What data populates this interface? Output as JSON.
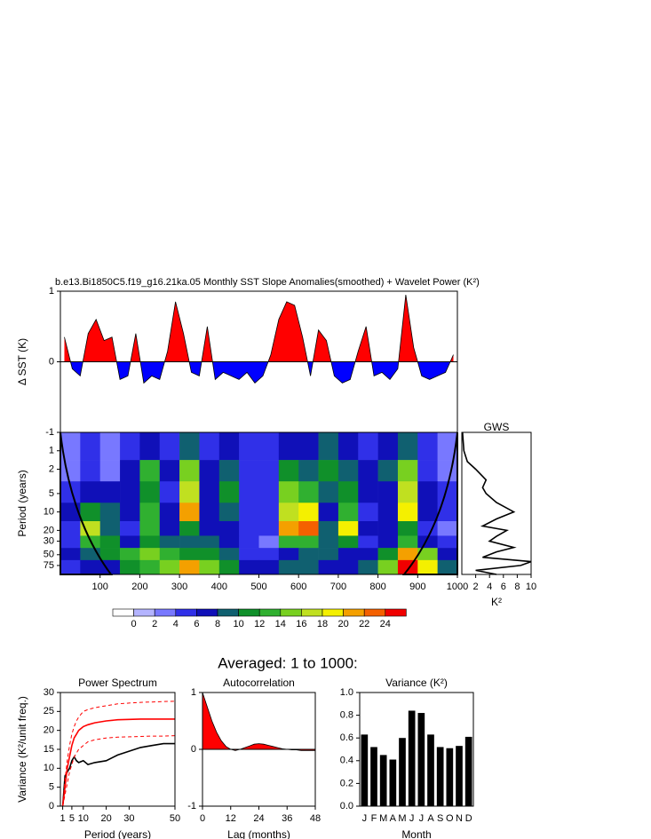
{
  "heading": "Averaged: 1 to 1000:",
  "chart_data": [
    {
      "type": "area",
      "title": "b.e13.Bi1850C5.f19_g16.21ka.05 Monthly SST Slope Anomalies(smoothed) + Wavelet Power (K²)",
      "ylabel": "Δ SST (K)",
      "xlim": [
        0,
        1000
      ],
      "ylim": [
        -1,
        1
      ],
      "yticks": [
        -1,
        0,
        1
      ],
      "color_positive": "#ff0000",
      "color_negative": "#0000ff",
      "x": [
        10,
        30,
        50,
        70,
        90,
        110,
        130,
        150,
        170,
        190,
        210,
        230,
        250,
        270,
        290,
        310,
        330,
        350,
        370,
        390,
        410,
        430,
        450,
        470,
        490,
        510,
        530,
        550,
        570,
        590,
        610,
        630,
        650,
        670,
        690,
        710,
        730,
        750,
        770,
        790,
        810,
        830,
        850,
        870,
        890,
        910,
        930,
        950,
        970,
        990
      ],
      "values": [
        0.35,
        -0.1,
        -0.2,
        0.4,
        0.6,
        0.3,
        0.35,
        -0.25,
        -0.2,
        0.4,
        -0.3,
        -0.2,
        -0.25,
        0.15,
        0.85,
        0.4,
        -0.15,
        -0.2,
        0.5,
        -0.25,
        -0.15,
        -0.2,
        -0.25,
        -0.15,
        -0.3,
        -0.2,
        0.1,
        0.6,
        0.85,
        0.8,
        0.35,
        -0.2,
        0.45,
        0.3,
        -0.2,
        -0.3,
        -0.25,
        0.15,
        0.5,
        -0.2,
        -0.15,
        -0.25,
        -0.1,
        0.95,
        0.2,
        -0.2,
        -0.25,
        -0.2,
        -0.15,
        0.1
      ]
    },
    {
      "type": "heatmap",
      "ylabel": "Period (years)",
      "xlim": [
        0,
        1000
      ],
      "ylim": [
        0.5,
        105
      ],
      "ylog": true,
      "y_reversed": true,
      "xticks": [
        100,
        200,
        300,
        400,
        500,
        600,
        700,
        800,
        900,
        1000
      ],
      "yticks": [
        1,
        2,
        5,
        10,
        20,
        30,
        50,
        75
      ],
      "x": [
        25,
        75,
        125,
        175,
        225,
        275,
        325,
        375,
        425,
        475,
        525,
        575,
        625,
        675,
        725,
        775,
        825,
        875,
        925,
        975
      ],
      "periods": [
        1,
        2,
        5,
        10,
        20,
        30,
        50,
        75
      ],
      "values": [
        [
          2,
          4,
          2,
          4,
          6,
          4,
          8,
          4,
          6,
          4,
          4,
          6,
          6,
          8,
          6,
          4,
          6,
          8,
          4,
          2
        ],
        [
          2,
          4,
          3,
          6,
          12,
          6,
          14,
          6,
          8,
          4,
          4,
          10,
          8,
          10,
          8,
          6,
          8,
          14,
          4,
          2
        ],
        [
          4,
          6,
          6,
          6,
          10,
          4,
          16,
          6,
          10,
          4,
          4,
          14,
          12,
          8,
          10,
          6,
          6,
          16,
          6,
          4
        ],
        [
          6,
          10,
          8,
          6,
          12,
          6,
          20,
          6,
          8,
          4,
          4,
          16,
          18,
          6,
          12,
          4,
          6,
          18,
          6,
          4
        ],
        [
          4,
          16,
          8,
          4,
          12,
          6,
          10,
          6,
          6,
          4,
          4,
          20,
          22,
          8,
          18,
          6,
          6,
          10,
          4,
          2
        ],
        [
          4,
          12,
          10,
          6,
          10,
          8,
          8,
          8,
          6,
          4,
          2,
          12,
          12,
          8,
          10,
          4,
          6,
          12,
          6,
          4
        ],
        [
          6,
          8,
          10,
          12,
          14,
          12,
          10,
          10,
          8,
          4,
          4,
          6,
          8,
          8,
          6,
          6,
          10,
          20,
          14,
          6
        ],
        [
          4,
          6,
          6,
          10,
          12,
          14,
          20,
          14,
          10,
          6,
          6,
          8,
          8,
          6,
          6,
          8,
          14,
          24,
          18,
          8
        ]
      ],
      "levels": [
        0,
        2,
        4,
        6,
        8,
        10,
        12,
        14,
        16,
        18,
        20,
        22,
        24
      ],
      "colors": [
        "#ffffff",
        "#b4b4ff",
        "#7878ff",
        "#3030e8",
        "#1010b8",
        "#106070",
        "#10902a",
        "#30b030",
        "#78d020",
        "#c0e020",
        "#f4f000",
        "#f4a000",
        "#f46000",
        "#f00000"
      ]
    },
    {
      "type": "line",
      "title": "GWS",
      "xlabel": "K²",
      "orientation": "horizontal",
      "xlim": [
        0,
        10
      ],
      "ylim": [
        0.5,
        105
      ],
      "ylog": true,
      "y_reversed": true,
      "xticks": [
        2,
        4,
        6,
        8,
        10
      ],
      "y": [
        0.5,
        1,
        1.5,
        2,
        3,
        4,
        5,
        7,
        10,
        13,
        17,
        20,
        25,
        30,
        38,
        45,
        55,
        65,
        75,
        90,
        105
      ],
      "series": [
        {
          "color": "#000000",
          "values": [
            0.1,
            0.3,
            0.8,
            2,
            3.5,
            3,
            3.5,
            5,
            7.5,
            5,
            3,
            6.5,
            5,
            4,
            7.5,
            5,
            3,
            10,
            8.5,
            2,
            5
          ]
        }
      ]
    },
    {
      "type": "line",
      "title": "Power Spectrum",
      "xlabel": "Period (years)",
      "ylabel": "Variance (K²/unit freq.)",
      "xlim": [
        0,
        50
      ],
      "ylim": [
        0,
        30
      ],
      "xticks": [
        1,
        5,
        10,
        20,
        30,
        50
      ],
      "yticks": [
        0,
        5,
        10,
        15,
        20,
        25,
        30
      ],
      "x": [
        1,
        2,
        3,
        4,
        5,
        6,
        7,
        8,
        10,
        12,
        15,
        20,
        25,
        30,
        35,
        40,
        45,
        50
      ],
      "series": [
        {
          "color": "#000000",
          "values": [
            0,
            8,
            9,
            10,
            12,
            13,
            12,
            11.5,
            12,
            11,
            11.5,
            12,
            13.5,
            14.5,
            15.5,
            16,
            16.5,
            16.5
          ]
        },
        {
          "color": "#ff0000",
          "values": [
            0,
            5,
            10,
            13,
            16,
            18,
            19,
            20,
            21,
            21.5,
            22,
            22.5,
            22.8,
            22.9,
            23,
            23,
            23,
            23
          ]
        },
        {
          "color": "#ff0000",
          "dashed": true,
          "values": [
            0,
            7,
            12,
            16,
            19,
            21,
            22.5,
            23.5,
            25,
            25.5,
            26,
            26.5,
            27,
            27.2,
            27.4,
            27.5,
            27.6,
            27.7
          ]
        },
        {
          "color": "#ff0000",
          "dashed": true,
          "values": [
            0,
            3,
            6,
            9,
            11,
            13,
            14,
            15,
            16,
            17,
            17.5,
            18,
            18.2,
            18.3,
            18.4,
            18.5,
            18.5,
            18.6
          ]
        }
      ]
    },
    {
      "type": "area",
      "title": "Autocorrelation",
      "xlabel": "Lag (months)",
      "xlim": [
        0,
        48
      ],
      "ylim": [
        -1,
        1
      ],
      "xticks": [
        0,
        12,
        24,
        36,
        48
      ],
      "yticks": [
        -1,
        0,
        1
      ],
      "color_positive": "#ff0000",
      "color_negative": "#ff0000",
      "x": [
        0,
        2,
        4,
        6,
        8,
        10,
        12,
        14,
        16,
        18,
        20,
        22,
        24,
        26,
        28,
        30,
        32,
        34,
        36,
        38,
        40,
        42,
        44,
        46,
        48
      ],
      "values": [
        1,
        0.75,
        0.5,
        0.3,
        0.15,
        0.05,
        0,
        -0.02,
        0,
        0.03,
        0.06,
        0.09,
        0.1,
        0.09,
        0.07,
        0.05,
        0.03,
        0.01,
        0,
        -0.01,
        -0.01,
        -0.02,
        -0.02,
        -0.02,
        -0.02
      ]
    },
    {
      "type": "bar",
      "title": "Variance (K²)",
      "xlabel": "Month",
      "color": "#000000",
      "ylim": [
        0,
        1
      ],
      "yticks": [
        {
          "value": 0,
          "label": "0.0"
        },
        0.2,
        0.4,
        0.6,
        0.8,
        {
          "value": 1,
          "label": "1.0"
        }
      ],
      "categories": [
        "J",
        "F",
        "M",
        "A",
        "M",
        "J",
        "J",
        "A",
        "S",
        "O",
        "N",
        "D"
      ],
      "values": [
        0.63,
        0.52,
        0.45,
        0.41,
        0.6,
        0.84,
        0.82,
        0.63,
        0.52,
        0.51,
        0.53,
        0.61
      ]
    }
  ]
}
